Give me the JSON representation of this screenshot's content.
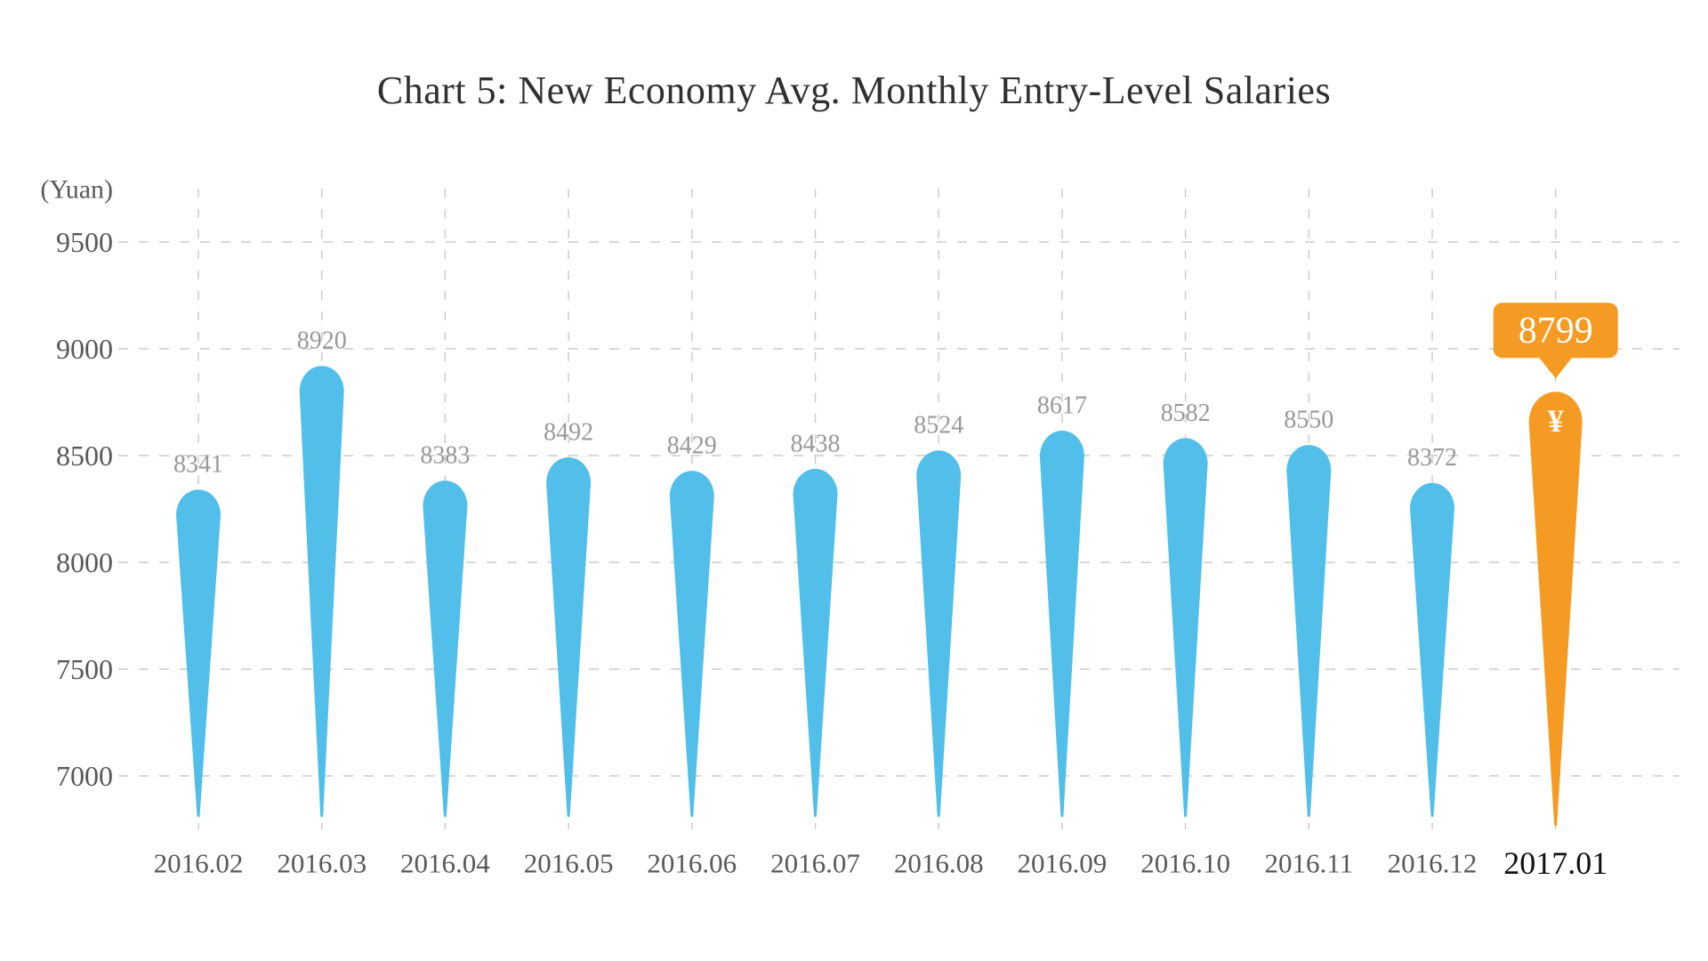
{
  "chart_data": {
    "type": "bar",
    "title": "Chart 5: New Economy Avg. Monthly Entry-Level Salaries",
    "unit_label": "(Yuan)",
    "xlabel": "",
    "ylabel": "(Yuan)",
    "categories": [
      "2016.02",
      "2016.03",
      "2016.04",
      "2016.05",
      "2016.06",
      "2016.07",
      "2016.08",
      "2016.09",
      "2016.10",
      "2016.11",
      "2016.12",
      "2017.01"
    ],
    "values": [
      8341,
      8920,
      8383,
      8492,
      8429,
      8438,
      8524,
      8617,
      8582,
      8550,
      8372,
      8799
    ],
    "highlight": {
      "index": 11,
      "category": "2017.01",
      "value": 8799,
      "callout_text": "8799",
      "currency_symbol": "¥"
    },
    "y_ticks": [
      7000,
      7500,
      8000,
      8500,
      9000,
      9500
    ],
    "ylim": [
      6750,
      9750
    ],
    "grid": true,
    "legend": false,
    "bar_shape": "teardrop",
    "colors": {
      "bar": "#51BFE9",
      "highlight": "#F59A23",
      "gridline": "#CCCCCC",
      "value_label": "#999999",
      "axis_label": "#595959",
      "highlight_axis_label": "#111111",
      "title": "#303030",
      "callout_text": "#FFFFFF",
      "background": "#FFFFFF"
    }
  }
}
